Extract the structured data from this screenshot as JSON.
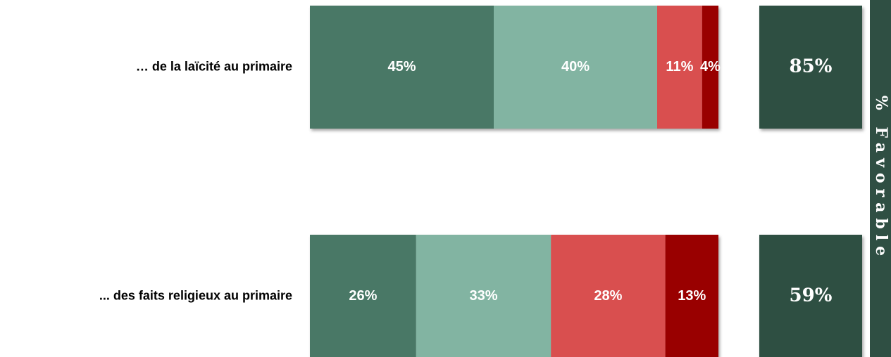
{
  "chart_data": {
    "type": "stacked-bar",
    "categories": [
      "… de la laïcité au primaire",
      "... des faits religieux au primaire"
    ],
    "series": [
      {
        "color": "#4a7866",
        "values": [
          45,
          26
        ],
        "value_labels": [
          "45%",
          "26%"
        ]
      },
      {
        "color": "#82b4a2",
        "values": [
          40,
          33
        ],
        "value_labels": [
          "40%",
          "33%"
        ]
      },
      {
        "color": "#d94f4f",
        "values": [
          11,
          28
        ],
        "value_labels": [
          "11%",
          "28%"
        ]
      },
      {
        "color": "#990000",
        "values": [
          4,
          13
        ],
        "value_labels": [
          "4%",
          "13%"
        ]
      }
    ],
    "xlim": [
      0,
      100
    ],
    "favorable": {
      "title": "% Favorable",
      "color": "#2f4f43",
      "values": [
        85,
        59
      ],
      "value_labels": [
        "85%",
        "59%"
      ]
    }
  }
}
